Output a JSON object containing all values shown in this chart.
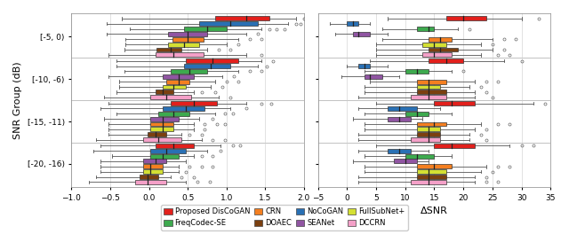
{
  "methods": [
    "Proposed DisCoGAN",
    "NoCoGAN",
    "FreqCodec-SE",
    "SEANet",
    "CRN",
    "FullSubNet+",
    "DOAEC",
    "DCCRN"
  ],
  "colors": [
    "#e2201c",
    "#2970b4",
    "#3daa4e",
    "#9055a2",
    "#f47f20",
    "#d4e033",
    "#7b4010",
    "#f4a0c8"
  ],
  "snr_groups": [
    "[-5, 0)",
    "[-10, -6)",
    "[-15, -11)",
    "[-20, -16)"
  ],
  "ylabel": "SNR Group (dB)",
  "xlabel_left": "ΔPESQ",
  "xlabel_right": "ΔSNR",
  "pesq": {
    "xlim": [
      -1.0,
      2.0
    ],
    "xticks": [
      -1.0,
      -0.5,
      0.0,
      0.5,
      1.0,
      1.5,
      2.0
    ],
    "groups": {
      "[-5, 0)": {
        "Proposed DisCoGAN": {
          "q1": 0.85,
          "median": 1.25,
          "q3": 1.55,
          "whislo": -0.35,
          "whishi": 1.9,
          "fliers": [
            2.0,
            2.05,
            2.1
          ]
        },
        "NoCoGAN": {
          "q1": 0.65,
          "median": 1.05,
          "q3": 1.4,
          "whislo": -0.55,
          "whishi": 1.8,
          "fliers": [
            1.9,
            1.95
          ]
        },
        "FreqCodec-SE": {
          "q1": 0.45,
          "median": 0.75,
          "q3": 1.0,
          "whislo": -0.25,
          "whishi": 1.45,
          "fliers": [
            1.55,
            1.65,
            1.75
          ]
        },
        "SEANet": {
          "q1": 0.25,
          "median": 0.5,
          "q3": 0.75,
          "whislo": -0.55,
          "whishi": 1.25,
          "fliers": [
            1.4
          ]
        },
        "CRN": {
          "q1": 0.3,
          "median": 0.5,
          "q3": 0.7,
          "whislo": -0.3,
          "whishi": 1.15,
          "fliers": [
            1.3,
            1.45
          ]
        },
        "FullSubNet+": {
          "q1": 0.25,
          "median": 0.45,
          "q3": 0.65,
          "whislo": -0.3,
          "whishi": 1.0,
          "fliers": [
            1.15
          ]
        },
        "DOAEC": {
          "q1": 0.1,
          "median": 0.28,
          "q3": 0.42,
          "whislo": -0.32,
          "whishi": 0.75,
          "fliers": [
            0.9,
            1.05
          ]
        },
        "DCCRN": {
          "q1": 0.08,
          "median": 0.32,
          "q3": 0.7,
          "whislo": -0.52,
          "whishi": 1.25,
          "fliers": [
            1.45
          ]
        }
      },
      "[-10, -6)": {
        "Proposed DisCoGAN": {
          "q1": 0.48,
          "median": 0.82,
          "q3": 1.15,
          "whislo": -0.42,
          "whishi": 1.45,
          "fliers": [
            1.6
          ]
        },
        "NoCoGAN": {
          "q1": 0.45,
          "median": 0.8,
          "q3": 1.05,
          "whislo": -0.42,
          "whishi": 1.4,
          "fliers": [
            1.52
          ]
        },
        "FreqCodec-SE": {
          "q1": 0.28,
          "median": 0.52,
          "q3": 0.75,
          "whislo": -0.32,
          "whishi": 1.15,
          "fliers": [
            1.3,
            1.45
          ]
        },
        "SEANet": {
          "q1": 0.18,
          "median": 0.38,
          "q3": 0.58,
          "whislo": -0.52,
          "whishi": 0.95,
          "fliers": [
            1.1
          ]
        },
        "CRN": {
          "q1": 0.22,
          "median": 0.38,
          "q3": 0.52,
          "whislo": -0.38,
          "whishi": 0.85,
          "fliers": [
            1.0,
            1.15
          ]
        },
        "FullSubNet+": {
          "q1": 0.18,
          "median": 0.32,
          "q3": 0.48,
          "whislo": -0.38,
          "whishi": 0.8,
          "fliers": [
            0.95
          ]
        },
        "DOAEC": {
          "q1": 0.08,
          "median": 0.18,
          "q3": 0.32,
          "whislo": -0.42,
          "whishi": 0.58,
          "fliers": [
            0.68,
            0.85
          ]
        },
        "DCCRN": {
          "q1": 0.02,
          "median": 0.22,
          "q3": 0.55,
          "whislo": -0.58,
          "whishi": 0.9,
          "fliers": [
            1.05
          ]
        }
      },
      "[-15, -11)": {
        "Proposed DisCoGAN": {
          "q1": 0.28,
          "median": 0.58,
          "q3": 0.88,
          "whislo": -0.52,
          "whishi": 1.25,
          "fliers": [
            1.45,
            1.58
          ]
        },
        "NoCoGAN": {
          "q1": 0.18,
          "median": 0.48,
          "q3": 0.72,
          "whislo": -0.62,
          "whishi": 1.05,
          "fliers": [
            1.25
          ]
        },
        "FreqCodec-SE": {
          "q1": 0.12,
          "median": 0.32,
          "q3": 0.52,
          "whislo": -0.42,
          "whishi": 0.85,
          "fliers": [
            0.98,
            1.08
          ]
        },
        "SEANet": {
          "q1": 0.02,
          "median": 0.18,
          "q3": 0.38,
          "whislo": -0.58,
          "whishi": 0.65,
          "fliers": [
            0.82
          ]
        },
        "CRN": {
          "q1": 0.02,
          "median": 0.18,
          "q3": 0.32,
          "whislo": -0.52,
          "whishi": 0.58,
          "fliers": [
            0.72,
            0.88,
            0.98
          ]
        },
        "FullSubNet+": {
          "q1": 0.02,
          "median": 0.18,
          "q3": 0.32,
          "whislo": -0.52,
          "whishi": 0.58,
          "fliers": [
            0.72
          ]
        },
        "DOAEC": {
          "q1": -0.02,
          "median": 0.08,
          "q3": 0.22,
          "whislo": -0.52,
          "whishi": 0.42,
          "fliers": [
            0.52,
            0.68
          ]
        },
        "DCCRN": {
          "q1": -0.08,
          "median": 0.12,
          "q3": 0.42,
          "whislo": -0.68,
          "whishi": 0.68,
          "fliers": [
            0.82,
            0.98
          ]
        }
      },
      "[-20, -16)": {
        "Proposed DisCoGAN": {
          "q1": 0.08,
          "median": 0.32,
          "q3": 0.58,
          "whislo": -0.62,
          "whishi": 0.92,
          "fliers": [
            1.08,
            1.18
          ]
        },
        "NoCoGAN": {
          "q1": 0.02,
          "median": 0.22,
          "q3": 0.48,
          "whislo": -0.72,
          "whishi": 0.75,
          "fliers": [
            0.92
          ]
        },
        "FreqCodec-SE": {
          "q1": 0.02,
          "median": 0.18,
          "q3": 0.38,
          "whislo": -0.48,
          "whishi": 0.58,
          "fliers": [
            0.68,
            0.82
          ]
        },
        "SEANet": {
          "q1": -0.08,
          "median": 0.08,
          "q3": 0.22,
          "whislo": -0.62,
          "whishi": 0.48,
          "fliers": []
        },
        "CRN": {
          "q1": -0.08,
          "median": 0.02,
          "q3": 0.18,
          "whislo": -0.62,
          "whishi": 0.38,
          "fliers": [
            0.52,
            0.68,
            0.82
          ]
        },
        "FullSubNet+": {
          "q1": -0.08,
          "median": 0.02,
          "q3": 0.18,
          "whislo": -0.62,
          "whishi": 0.38,
          "fliers": [
            0.48
          ]
        },
        "DOAEC": {
          "q1": -0.12,
          "median": -0.02,
          "q3": 0.12,
          "whislo": -0.68,
          "whishi": 0.28,
          "fliers": [
            0.42,
            0.58
          ]
        },
        "DCCRN": {
          "q1": -0.18,
          "median": -0.02,
          "q3": 0.22,
          "whislo": -0.78,
          "whishi": 0.48,
          "fliers": [
            0.62,
            0.78
          ]
        }
      }
    }
  },
  "snr": {
    "xlim": [
      -5,
      35
    ],
    "xticks": [
      -5,
      0,
      5,
      10,
      15,
      20,
      25,
      30,
      35
    ],
    "groups": {
      "[-5, 0)": {
        "Proposed DisCoGAN": {
          "q1": 17,
          "median": 20,
          "q3": 24,
          "whislo": 7,
          "whishi": 30,
          "fliers": [
            33
          ]
        },
        "NoCoGAN": {
          "q1": 0,
          "median": 1,
          "q3": 2,
          "whislo": -3,
          "whishi": 4,
          "fliers": []
        },
        "FreqCodec-SE": {
          "q1": 12,
          "median": 14,
          "q3": 15,
          "whislo": 6,
          "whishi": 19,
          "fliers": [
            21
          ]
        },
        "SEANet": {
          "q1": 1,
          "median": 2,
          "q3": 4,
          "whislo": -2,
          "whishi": 7,
          "fliers": []
        },
        "CRN": {
          "q1": 14,
          "median": 16,
          "q3": 18,
          "whislo": 6,
          "whishi": 25,
          "fliers": [
            27,
            29
          ]
        },
        "FullSubNet+": {
          "q1": 13,
          "median": 15,
          "q3": 17,
          "whislo": 5,
          "whishi": 23,
          "fliers": [
            25
          ]
        },
        "DOAEC": {
          "q1": 14,
          "median": 16,
          "q3": 19,
          "whislo": 5,
          "whishi": 25,
          "fliers": [
            27
          ]
        },
        "DCCRN": {
          "q1": 13,
          "median": 15,
          "q3": 18,
          "whislo": 5,
          "whishi": 23,
          "fliers": [
            26,
            28
          ]
        }
      },
      "[-10, -6)": {
        "Proposed DisCoGAN": {
          "q1": 14,
          "median": 17,
          "q3": 20,
          "whislo": 4,
          "whishi": 27,
          "fliers": [
            30
          ]
        },
        "NoCoGAN": {
          "q1": 2,
          "median": 3,
          "q3": 4,
          "whislo": 0,
          "whishi": 7,
          "fliers": []
        },
        "FreqCodec-SE": {
          "q1": 10,
          "median": 12,
          "q3": 14,
          "whislo": 3,
          "whishi": 18,
          "fliers": [
            20
          ]
        },
        "SEANet": {
          "q1": 3,
          "median": 4,
          "q3": 6,
          "whislo": -1,
          "whishi": 9,
          "fliers": []
        },
        "CRN": {
          "q1": 12,
          "median": 14,
          "q3": 17,
          "whislo": 4,
          "whishi": 22,
          "fliers": [
            24,
            26
          ]
        },
        "FullSubNet+": {
          "q1": 12,
          "median": 14,
          "q3": 16,
          "whislo": 3,
          "whishi": 21,
          "fliers": [
            23
          ]
        },
        "DOAEC": {
          "q1": 12,
          "median": 14,
          "q3": 17,
          "whislo": 3,
          "whishi": 22,
          "fliers": [
            24
          ]
        },
        "DCCRN": {
          "q1": 11,
          "median": 14,
          "q3": 17,
          "whislo": 2,
          "whishi": 22,
          "fliers": [
            25
          ]
        }
      },
      "[-15, -11)": {
        "Proposed DisCoGAN": {
          "q1": 15,
          "median": 18,
          "q3": 22,
          "whislo": 5,
          "whishi": 32,
          "fliers": [
            34
          ]
        },
        "NoCoGAN": {
          "q1": 7,
          "median": 9,
          "q3": 12,
          "whislo": 2,
          "whishi": 16,
          "fliers": []
        },
        "FreqCodec-SE": {
          "q1": 10,
          "median": 12,
          "q3": 14,
          "whislo": 3,
          "whishi": 18,
          "fliers": []
        },
        "SEANet": {
          "q1": 7,
          "median": 9,
          "q3": 11,
          "whislo": 1,
          "whishi": 13,
          "fliers": []
        },
        "CRN": {
          "q1": 12,
          "median": 15,
          "q3": 17,
          "whislo": 3,
          "whishi": 23,
          "fliers": [
            26,
            28
          ]
        },
        "FullSubNet+": {
          "q1": 12,
          "median": 14,
          "q3": 16,
          "whislo": 3,
          "whishi": 22,
          "fliers": [
            24
          ]
        },
        "DOAEC": {
          "q1": 12,
          "median": 14,
          "q3": 16,
          "whislo": 2,
          "whishi": 21,
          "fliers": [
            23
          ]
        },
        "DCCRN": {
          "q1": 11,
          "median": 14,
          "q3": 16,
          "whislo": 2,
          "whishi": 21,
          "fliers": [
            24
          ]
        }
      },
      "[-20, -16)": {
        "Proposed DisCoGAN": {
          "q1": 15,
          "median": 18,
          "q3": 22,
          "whislo": 5,
          "whishi": 28,
          "fliers": [
            30,
            32
          ]
        },
        "NoCoGAN": {
          "q1": 7,
          "median": 9,
          "q3": 11,
          "whislo": 2,
          "whishi": 14,
          "fliers": []
        },
        "FreqCodec-SE": {
          "q1": 10,
          "median": 12,
          "q3": 15,
          "whislo": 3,
          "whishi": 18,
          "fliers": []
        },
        "SEANet": {
          "q1": 8,
          "median": 10,
          "q3": 12,
          "whislo": 1,
          "whishi": 14,
          "fliers": []
        },
        "CRN": {
          "q1": 12,
          "median": 15,
          "q3": 18,
          "whislo": 3,
          "whishi": 24,
          "fliers": [
            26,
            28
          ]
        },
        "FullSubNet+": {
          "q1": 12,
          "median": 14,
          "q3": 17,
          "whislo": 3,
          "whishi": 23,
          "fliers": [
            25
          ]
        },
        "DOAEC": {
          "q1": 12,
          "median": 14,
          "q3": 17,
          "whislo": 2,
          "whishi": 22,
          "fliers": [
            24
          ]
        },
        "DCCRN": {
          "q1": 11,
          "median": 14,
          "q3": 17,
          "whislo": 2,
          "whishi": 22,
          "fliers": [
            24,
            26
          ]
        }
      }
    }
  },
  "legend": {
    "labels": [
      "Proposed DisCoGAN",
      "FreqCodec-SE",
      "CRN",
      "DOAEC",
      "NoCoGAN",
      "SEANet",
      "FullSubNet+",
      "DCCRN"
    ],
    "colors": [
      "#e2201c",
      "#3daa4e",
      "#f47f20",
      "#7b4010",
      "#2970b4",
      "#9055a2",
      "#d4e033",
      "#f4a0c8"
    ]
  }
}
